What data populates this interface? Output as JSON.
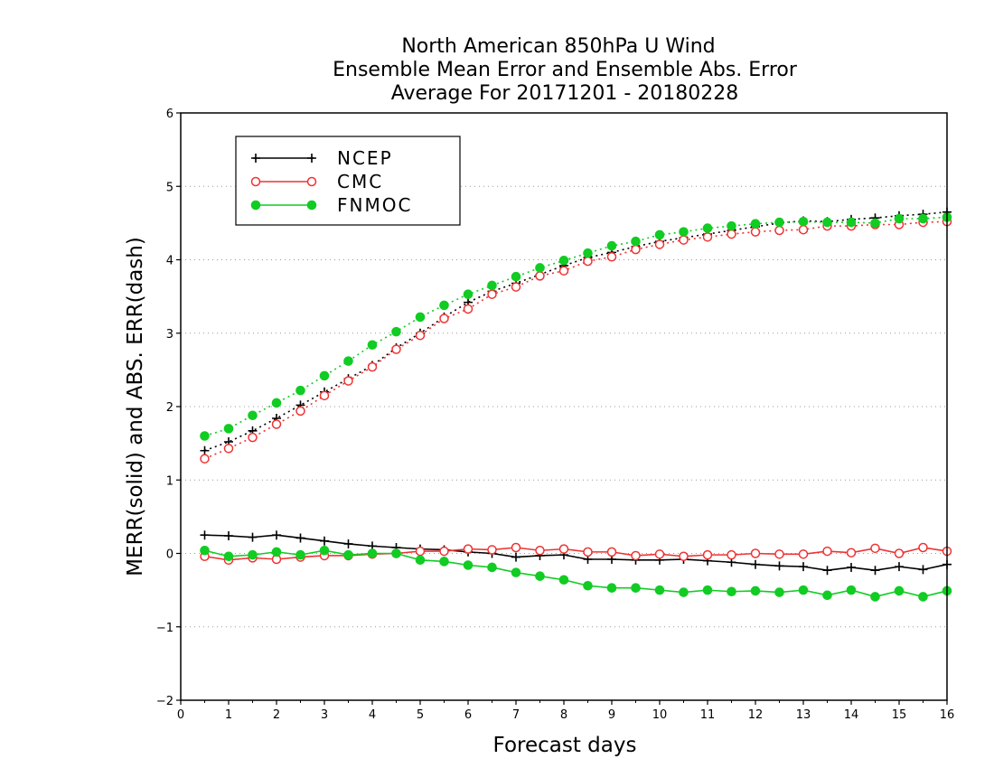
{
  "chart_data": {
    "type": "line",
    "title_lines": [
      "North American 850hPa U Wind",
      "Ensemble Mean Error and Ensemble Abs. Error",
      "Average For 20171201 - 20180228"
    ],
    "xlabel": "Forecast days",
    "ylabel": "MERR(solid) and ABS. ERR(dash)",
    "xlim": [
      0,
      16
    ],
    "ylim": [
      -2,
      6
    ],
    "xticks": [
      0,
      1,
      2,
      3,
      4,
      5,
      6,
      7,
      8,
      9,
      10,
      11,
      12,
      13,
      14,
      15,
      16
    ],
    "yticks": [
      -2,
      -1,
      0,
      1,
      2,
      3,
      4,
      5,
      6
    ],
    "ytick_labels": [
      "−2",
      "−1",
      "0",
      "1",
      "2",
      "3",
      "4",
      "5",
      "6"
    ],
    "grid": "horizontal dotted",
    "legend_placement": "top-left",
    "x": [
      0.5,
      1,
      1.5,
      2,
      2.5,
      3,
      3.5,
      4,
      4.5,
      5,
      5.5,
      6,
      6.5,
      7,
      7.5,
      8,
      8.5,
      9,
      9.5,
      10,
      10.5,
      11,
      11.5,
      12,
      12.5,
      13,
      13.5,
      14,
      14.5,
      15,
      15.5,
      16
    ],
    "series": [
      {
        "name": "NCEP",
        "color": "#000000",
        "marker": "plus",
        "merr": [
          0.25,
          0.24,
          0.22,
          0.25,
          0.21,
          0.17,
          0.13,
          0.1,
          0.08,
          0.06,
          0.05,
          0.02,
          0.0,
          -0.05,
          -0.03,
          -0.02,
          -0.08,
          -0.08,
          -0.09,
          -0.09,
          -0.08,
          -0.1,
          -0.12,
          -0.15,
          -0.17,
          -0.18,
          -0.23,
          -0.19,
          -0.23,
          -0.18,
          -0.22,
          -0.15
        ],
        "abs_err": [
          1.4,
          1.52,
          1.67,
          1.84,
          2.02,
          2.2,
          2.38,
          2.56,
          2.8,
          3.0,
          3.22,
          3.42,
          3.57,
          3.68,
          3.8,
          3.92,
          4.03,
          4.1,
          4.18,
          4.25,
          4.3,
          4.35,
          4.4,
          4.45,
          4.5,
          4.53,
          4.52,
          4.55,
          4.57,
          4.6,
          4.62,
          4.65
        ]
      },
      {
        "name": "CMC",
        "color": "#ee3333",
        "marker": "open-circle",
        "merr": [
          -0.04,
          -0.09,
          -0.06,
          -0.08,
          -0.05,
          -0.03,
          -0.03,
          -0.01,
          0.0,
          0.03,
          0.03,
          0.06,
          0.05,
          0.08,
          0.04,
          0.06,
          0.02,
          0.02,
          -0.03,
          -0.01,
          -0.04,
          -0.02,
          -0.02,
          0.0,
          -0.01,
          -0.01,
          0.03,
          0.01,
          0.07,
          0.0,
          0.08,
          0.03
        ],
        "abs_err": [
          1.29,
          1.43,
          1.58,
          1.76,
          1.94,
          2.15,
          2.35,
          2.54,
          2.78,
          2.97,
          3.2,
          3.33,
          3.53,
          3.63,
          3.78,
          3.85,
          3.98,
          4.04,
          4.14,
          4.21,
          4.27,
          4.31,
          4.35,
          4.38,
          4.4,
          4.41,
          4.46,
          4.46,
          4.48,
          4.48,
          4.51,
          4.52
        ]
      },
      {
        "name": "FNMOC",
        "color": "#11cc22",
        "marker": "filled-circle",
        "merr": [
          0.04,
          -0.04,
          -0.02,
          0.02,
          -0.02,
          0.04,
          -0.02,
          0.0,
          0.0,
          -0.09,
          -0.11,
          -0.16,
          -0.19,
          -0.26,
          -0.31,
          -0.36,
          -0.44,
          -0.47,
          -0.47,
          -0.5,
          -0.53,
          -0.5,
          -0.52,
          -0.51,
          -0.53,
          -0.5,
          -0.57,
          -0.5,
          -0.59,
          -0.51,
          -0.59,
          -0.51
        ],
        "abs_err": [
          1.6,
          1.7,
          1.88,
          2.05,
          2.22,
          2.42,
          2.62,
          2.84,
          3.02,
          3.22,
          3.38,
          3.53,
          3.65,
          3.77,
          3.89,
          3.99,
          4.09,
          4.19,
          4.25,
          4.34,
          4.38,
          4.43,
          4.46,
          4.49,
          4.51,
          4.52,
          4.51,
          4.51,
          4.5,
          4.56,
          4.56,
          4.58
        ]
      }
    ]
  }
}
